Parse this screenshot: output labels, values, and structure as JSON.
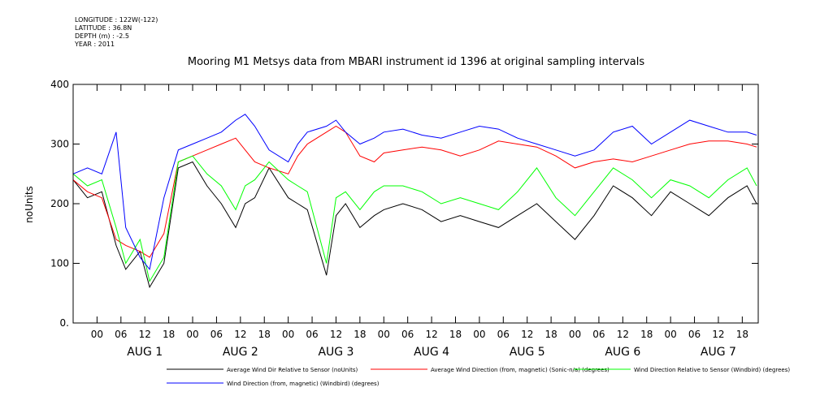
{
  "header": {
    "longitude": "LONGITUDE : 122W(-122)",
    "latitude": "LATITUDE : 36.8N",
    "depth": "DEPTH (m) : -2.5",
    "year": "YEAR : 2011"
  },
  "chart_data": {
    "type": "line",
    "title": "Mooring M1 Metsys data from MBARI instrument id 1396 at original sampling intervals",
    "ylabel": "noUnits",
    "xlabel": "",
    "ylim": [
      0,
      400
    ],
    "xlim": [
      -0.25,
      6.917
    ],
    "x_unit": "days since Aug 1 2011 00:00",
    "y_ticks": [
      "0.",
      "100",
      "200",
      "300",
      "400"
    ],
    "y_tick_values": [
      0,
      100,
      200,
      300,
      400
    ],
    "hour_ticks": [
      "00",
      "06",
      "12",
      "18"
    ],
    "days": [
      "AUG 1",
      "AUG 2",
      "AUG 3",
      "AUG 4",
      "AUG 5",
      "AUG 6",
      "AUG 7"
    ],
    "grid": false,
    "legend_position": "bottom",
    "series": [
      {
        "name": "Average Wind Dir Relative to Sensor (noUnits)",
        "color": "#000000",
        "x": [
          -0.25,
          -0.1,
          0.05,
          0.2,
          0.3,
          0.45,
          0.55,
          0.7,
          0.85,
          1.0,
          1.15,
          1.3,
          1.45,
          1.55,
          1.65,
          1.8,
          2.0,
          2.1,
          2.2,
          2.4,
          2.5,
          2.6,
          2.75,
          2.9,
          3.0,
          3.2,
          3.4,
          3.6,
          3.8,
          4.0,
          4.2,
          4.4,
          4.6,
          4.8,
          5.0,
          5.2,
          5.4,
          5.6,
          5.8,
          6.0,
          6.2,
          6.4,
          6.6,
          6.8,
          6.9
        ],
        "y": [
          240,
          210,
          220,
          130,
          90,
          120,
          60,
          100,
          260,
          270,
          230,
          200,
          160,
          200,
          210,
          260,
          210,
          200,
          190,
          80,
          180,
          200,
          160,
          180,
          190,
          200,
          190,
          170,
          180,
          170,
          160,
          180,
          200,
          170,
          140,
          180,
          230,
          210,
          180,
          220,
          200,
          180,
          210,
          230,
          200
        ]
      },
      {
        "name": "Average Wind Direction (from, magnetic) (Sonic-n/a) (degrees)",
        "color": "#ff0000",
        "x": [
          -0.25,
          -0.1,
          0.05,
          0.2,
          0.3,
          0.45,
          0.55,
          0.7,
          0.85,
          1.0,
          1.15,
          1.3,
          1.45,
          1.55,
          1.65,
          1.8,
          2.0,
          2.1,
          2.2,
          2.4,
          2.5,
          2.6,
          2.75,
          2.9,
          3.0,
          3.2,
          3.4,
          3.6,
          3.8,
          4.0,
          4.2,
          4.4,
          4.6,
          4.8,
          5.0,
          5.2,
          5.4,
          5.6,
          5.8,
          6.0,
          6.2,
          6.4,
          6.6,
          6.8,
          6.9
        ],
        "y": [
          240,
          220,
          210,
          140,
          130,
          120,
          110,
          150,
          270,
          280,
          290,
          300,
          310,
          290,
          270,
          260,
          250,
          280,
          300,
          320,
          330,
          320,
          280,
          270,
          285,
          290,
          295,
          290,
          280,
          290,
          305,
          300,
          295,
          280,
          260,
          270,
          275,
          270,
          280,
          290,
          300,
          305,
          305,
          300,
          295
        ]
      },
      {
        "name": "Wind Direction Relative to Sensor (Windbird) (degrees)",
        "color": "#00ff00",
        "x": [
          -0.25,
          -0.1,
          0.05,
          0.2,
          0.3,
          0.45,
          0.55,
          0.7,
          0.85,
          1.0,
          1.15,
          1.3,
          1.45,
          1.55,
          1.65,
          1.8,
          2.0,
          2.1,
          2.2,
          2.4,
          2.5,
          2.6,
          2.75,
          2.9,
          3.0,
          3.2,
          3.4,
          3.6,
          3.8,
          4.0,
          4.2,
          4.4,
          4.6,
          4.8,
          5.0,
          5.2,
          5.4,
          5.6,
          5.8,
          6.0,
          6.2,
          6.4,
          6.6,
          6.8,
          6.9
        ],
        "y": [
          250,
          230,
          240,
          160,
          100,
          140,
          70,
          110,
          270,
          280,
          250,
          230,
          190,
          230,
          240,
          270,
          240,
          230,
          220,
          100,
          210,
          220,
          190,
          220,
          230,
          230,
          220,
          200,
          210,
          200,
          190,
          220,
          260,
          210,
          180,
          220,
          260,
          240,
          210,
          240,
          230,
          210,
          240,
          260,
          230
        ]
      },
      {
        "name": "Wind Direction (from, magnetic) (Windbird) (degrees)",
        "color": "#0000ff",
        "x": [
          -0.25,
          -0.1,
          0.05,
          0.2,
          0.3,
          0.45,
          0.55,
          0.7,
          0.85,
          1.0,
          1.15,
          1.3,
          1.45,
          1.55,
          1.65,
          1.8,
          2.0,
          2.1,
          2.2,
          2.4,
          2.5,
          2.6,
          2.75,
          2.9,
          3.0,
          3.2,
          3.4,
          3.6,
          3.8,
          4.0,
          4.2,
          4.4,
          4.6,
          4.8,
          5.0,
          5.2,
          5.4,
          5.6,
          5.8,
          6.0,
          6.2,
          6.4,
          6.6,
          6.8,
          6.9
        ],
        "y": [
          250,
          260,
          250,
          320,
          160,
          110,
          90,
          210,
          290,
          300,
          310,
          320,
          340,
          350,
          330,
          290,
          270,
          300,
          320,
          330,
          340,
          320,
          300,
          310,
          320,
          325,
          315,
          310,
          320,
          330,
          325,
          310,
          300,
          290,
          280,
          290,
          320,
          330,
          300,
          320,
          340,
          330,
          320,
          320,
          315
        ]
      }
    ]
  }
}
